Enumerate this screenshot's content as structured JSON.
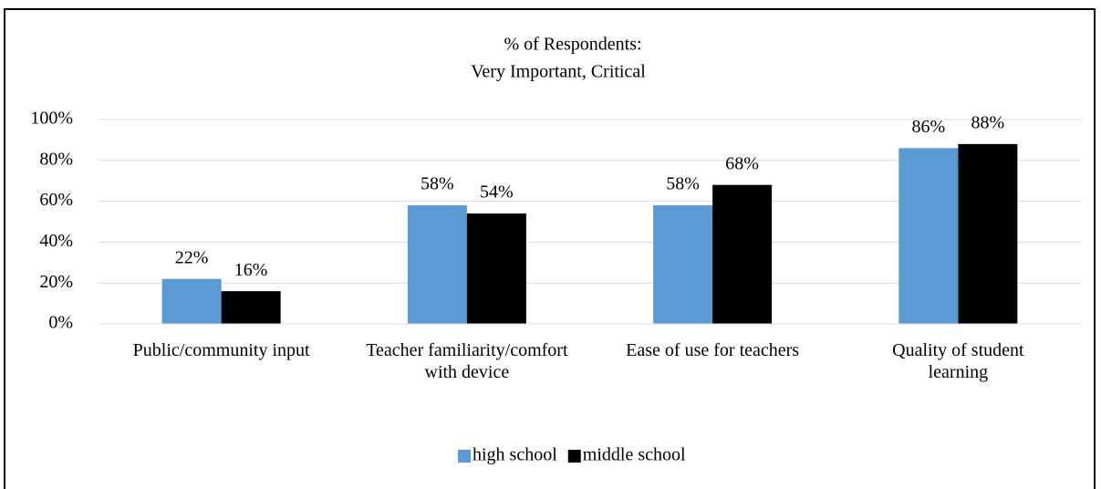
{
  "chart_data": {
    "type": "bar",
    "title": [
      "% of Respondents:",
      "Very Important, Critical"
    ],
    "categories": [
      "Public/community input",
      "Teacher familiarity/comfort with device",
      "Ease of use for teachers",
      "Quality of student learning"
    ],
    "series": [
      {
        "name": "high school",
        "color": "#5b9bd5",
        "values": [
          22,
          58,
          58,
          86
        ],
        "value_labels": [
          "22%",
          "58%",
          "58%",
          "86%"
        ]
      },
      {
        "name": "middle school",
        "color": "#000000",
        "values": [
          16,
          54,
          68,
          88
        ],
        "value_labels": [
          "16%",
          "54%",
          "68%",
          "88%"
        ]
      }
    ],
    "ylim": [
      0,
      100
    ],
    "yticks": [
      {
        "value": 0,
        "label": "0%"
      },
      {
        "value": 20,
        "label": "20%"
      },
      {
        "value": 40,
        "label": "40%"
      },
      {
        "value": 60,
        "label": "60%"
      },
      {
        "value": 80,
        "label": "80%"
      },
      {
        "value": 100,
        "label": "100%"
      }
    ],
    "grid": true,
    "legend": "bottom"
  }
}
